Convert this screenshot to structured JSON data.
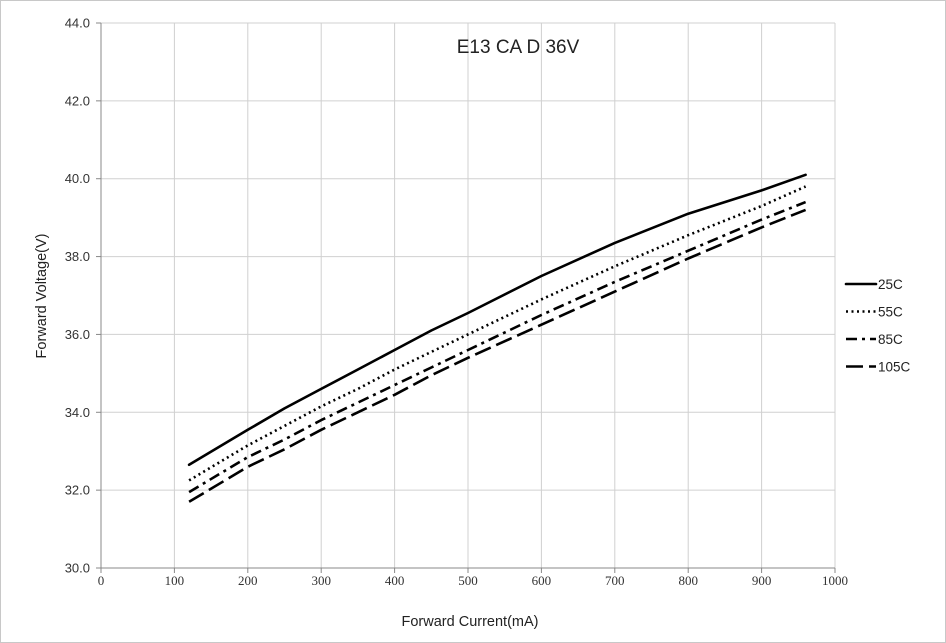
{
  "chart_data": {
    "type": "line",
    "title": "E13 CA D 36V",
    "xlabel": "Forward Current(mA)",
    "ylabel": "Forward Voltage(V)",
    "xlim": [
      0,
      1000
    ],
    "ylim": [
      30,
      44
    ],
    "x_ticks": [
      "0",
      "100",
      "200",
      "300",
      "400",
      "500",
      "600",
      "700",
      "800",
      "900",
      "1000"
    ],
    "y_ticks": [
      "30.0",
      "32.0",
      "34.0",
      "36.0",
      "38.0",
      "40.0",
      "42.0",
      "44.0"
    ],
    "grid": true,
    "legend_position": "right",
    "x": [
      120,
      200,
      250,
      300,
      350,
      400,
      450,
      500,
      600,
      700,
      800,
      900,
      960
    ],
    "series": [
      {
        "name": "25C",
        "dash": "solid",
        "color": "#000000",
        "values": [
          32.65,
          33.55,
          34.1,
          34.6,
          35.1,
          35.6,
          36.1,
          36.55,
          37.5,
          38.35,
          39.1,
          39.7,
          40.1
        ]
      },
      {
        "name": "55C",
        "dash": "dotted",
        "color": "#000000",
        "values": [
          32.25,
          33.15,
          33.65,
          34.15,
          34.6,
          35.1,
          35.55,
          36.0,
          36.9,
          37.75,
          38.55,
          39.3,
          39.8
        ]
      },
      {
        "name": "85C",
        "dash": "dashdot",
        "color": "#000000",
        "values": [
          31.95,
          32.85,
          33.3,
          33.8,
          34.25,
          34.7,
          35.15,
          35.6,
          36.5,
          37.35,
          38.15,
          38.95,
          39.4
        ]
      },
      {
        "name": "105C",
        "dash": "longdash",
        "color": "#000000",
        "values": [
          31.7,
          32.6,
          33.05,
          33.55,
          34.0,
          34.45,
          34.95,
          35.4,
          36.25,
          37.1,
          37.95,
          38.75,
          39.2
        ]
      }
    ]
  }
}
